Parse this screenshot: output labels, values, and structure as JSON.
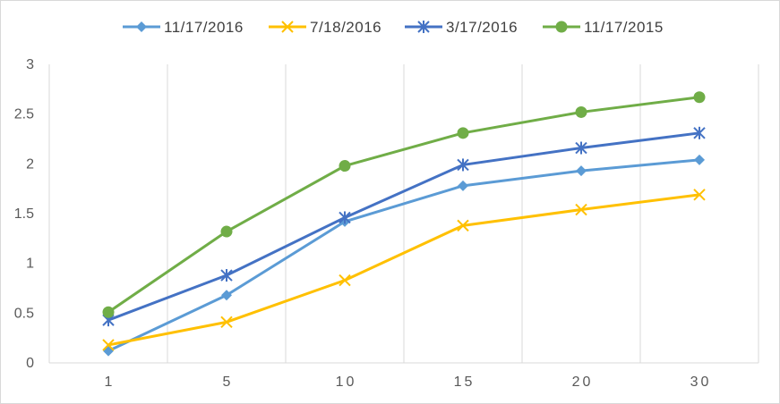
{
  "chart_data": {
    "type": "line",
    "categories": [
      "1",
      "5",
      "10",
      "15",
      "20",
      "30"
    ],
    "ylim": [
      0,
      3
    ],
    "yticks": [
      "0",
      "0.5",
      "1",
      "1.5",
      "2",
      "2.5",
      "3"
    ],
    "grid": "vertical",
    "legend_position": "top",
    "series": [
      {
        "name": "11/17/2016",
        "color": "#5b9bd5",
        "marker": "diamond",
        "values": [
          0.12,
          0.68,
          1.42,
          1.78,
          1.93,
          2.04
        ]
      },
      {
        "name": "7/18/2016",
        "color": "#ffc000",
        "marker": "x",
        "values": [
          0.18,
          0.41,
          0.83,
          1.38,
          1.54,
          1.69
        ]
      },
      {
        "name": "3/17/2016",
        "color": "#4472c4",
        "marker": "star",
        "values": [
          0.43,
          0.88,
          1.46,
          1.99,
          2.16,
          2.31
        ]
      },
      {
        "name": "11/17/2015",
        "color": "#70ad47",
        "marker": "circle",
        "values": [
          0.51,
          1.32,
          1.98,
          2.31,
          2.52,
          2.67
        ]
      }
    ]
  }
}
